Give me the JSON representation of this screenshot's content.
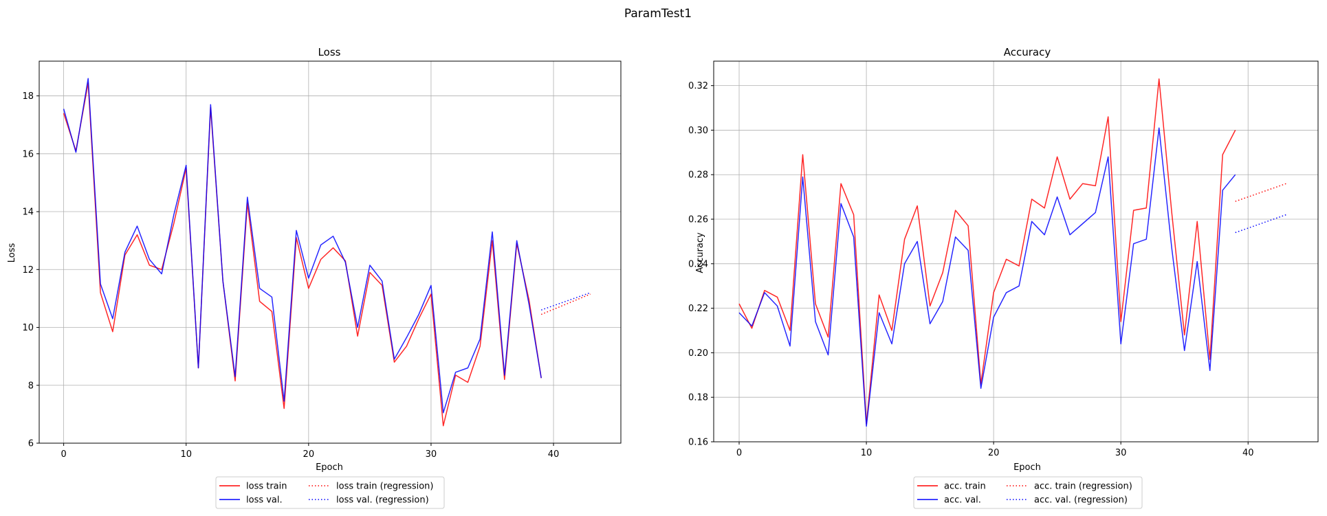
{
  "figure": {
    "suptitle": "ParamTest1"
  },
  "chart_data": [
    {
      "type": "line",
      "title": "Loss",
      "xlabel": "Epoch",
      "ylabel": "Loss",
      "xlim": [
        -2,
        45.5
      ],
      "ylim": [
        6,
        19.2
      ],
      "xticks": [
        0,
        10,
        20,
        30,
        40
      ],
      "yticks": [
        6,
        8,
        10,
        12,
        14,
        16,
        18
      ],
      "grid": true,
      "legend": {
        "placement": "bottom-center",
        "columns": 2
      },
      "x": [
        0,
        1,
        2,
        3,
        4,
        5,
        6,
        7,
        8,
        9,
        10,
        11,
        12,
        13,
        14,
        15,
        16,
        17,
        18,
        19,
        20,
        21,
        22,
        23,
        24,
        25,
        26,
        27,
        28,
        29,
        30,
        31,
        32,
        33,
        34,
        35,
        36,
        37,
        38,
        39
      ],
      "series": [
        {
          "name": "loss train",
          "color": "#ff0000",
          "style": "solid",
          "values": [
            17.4,
            16.1,
            18.45,
            11.2,
            9.85,
            12.5,
            13.2,
            12.15,
            12.0,
            13.6,
            15.5,
            8.6,
            17.6,
            11.6,
            8.15,
            14.3,
            10.9,
            10.55,
            7.2,
            13.1,
            11.35,
            12.35,
            12.75,
            12.3,
            9.7,
            11.9,
            11.45,
            8.8,
            9.35,
            10.3,
            11.15,
            6.6,
            8.35,
            8.1,
            9.35,
            13.0,
            8.2,
            12.9,
            10.95,
            8.25
          ]
        },
        {
          "name": "loss val.",
          "color": "#0000ff",
          "style": "solid",
          "values": [
            17.55,
            16.05,
            18.6,
            11.5,
            10.3,
            12.6,
            13.5,
            12.35,
            11.85,
            13.9,
            15.6,
            8.6,
            17.7,
            11.6,
            8.3,
            14.5,
            11.35,
            11.05,
            7.45,
            13.35,
            11.7,
            12.85,
            13.15,
            12.25,
            10.0,
            12.15,
            11.6,
            8.9,
            9.65,
            10.45,
            11.45,
            7.05,
            8.45,
            8.6,
            9.6,
            13.3,
            8.35,
            13.0,
            10.8,
            8.25
          ]
        },
        {
          "name": "loss train (regression)",
          "color": "#ff0000",
          "style": "dotted",
          "x": [
            39,
            43
          ],
          "values": [
            10.45,
            11.15
          ]
        },
        {
          "name": "loss val. (regression)",
          "color": "#0000ff",
          "style": "dotted",
          "x": [
            39,
            43
          ],
          "values": [
            10.6,
            11.2
          ]
        }
      ]
    },
    {
      "type": "line",
      "title": "Accuracy",
      "xlabel": "Epoch",
      "ylabel": "Accuracy",
      "xlim": [
        -2,
        45.5
      ],
      "ylim": [
        0.16,
        0.331
      ],
      "xticks": [
        0,
        10,
        20,
        30,
        40
      ],
      "yticks": [
        0.16,
        0.18,
        0.2,
        0.22,
        0.24,
        0.26,
        0.28,
        0.3,
        0.32
      ],
      "ytick_labels": [
        "0.16",
        "0.18",
        "0.20",
        "0.22",
        "0.24",
        "0.26",
        "0.28",
        "0.30",
        "0.32"
      ],
      "grid": true,
      "legend": {
        "placement": "bottom-center",
        "columns": 2
      },
      "x": [
        0,
        1,
        2,
        3,
        4,
        5,
        6,
        7,
        8,
        9,
        10,
        11,
        12,
        13,
        14,
        15,
        16,
        17,
        18,
        19,
        20,
        21,
        22,
        23,
        24,
        25,
        26,
        27,
        28,
        29,
        30,
        31,
        32,
        33,
        34,
        35,
        36,
        37,
        38,
        39
      ],
      "series": [
        {
          "name": "acc. train",
          "color": "#ff0000",
          "style": "solid",
          "values": [
            0.222,
            0.211,
            0.228,
            0.225,
            0.21,
            0.289,
            0.222,
            0.207,
            0.276,
            0.262,
            0.168,
            0.226,
            0.21,
            0.251,
            0.266,
            0.221,
            0.236,
            0.264,
            0.257,
            0.186,
            0.227,
            0.242,
            0.239,
            0.269,
            0.265,
            0.288,
            0.269,
            0.276,
            0.275,
            0.306,
            0.214,
            0.264,
            0.265,
            0.323,
            0.263,
            0.208,
            0.259,
            0.197,
            0.289,
            0.3
          ]
        },
        {
          "name": "acc. val.",
          "color": "#0000ff",
          "style": "solid",
          "values": [
            0.218,
            0.212,
            0.227,
            0.221,
            0.203,
            0.279,
            0.214,
            0.199,
            0.267,
            0.252,
            0.167,
            0.218,
            0.204,
            0.24,
            0.25,
            0.213,
            0.223,
            0.252,
            0.246,
            0.184,
            0.216,
            0.227,
            0.23,
            0.259,
            0.253,
            0.27,
            0.253,
            0.258,
            0.263,
            0.288,
            0.204,
            0.249,
            0.251,
            0.301,
            0.247,
            0.201,
            0.241,
            0.192,
            0.273,
            0.28
          ]
        },
        {
          "name": "acc. train (regression)",
          "color": "#ff0000",
          "style": "dotted",
          "x": [
            39,
            43
          ],
          "values": [
            0.268,
            0.276
          ]
        },
        {
          "name": "acc. val. (regression)",
          "color": "#0000ff",
          "style": "dotted",
          "x": [
            39,
            43
          ],
          "values": [
            0.254,
            0.262
          ]
        }
      ]
    }
  ]
}
